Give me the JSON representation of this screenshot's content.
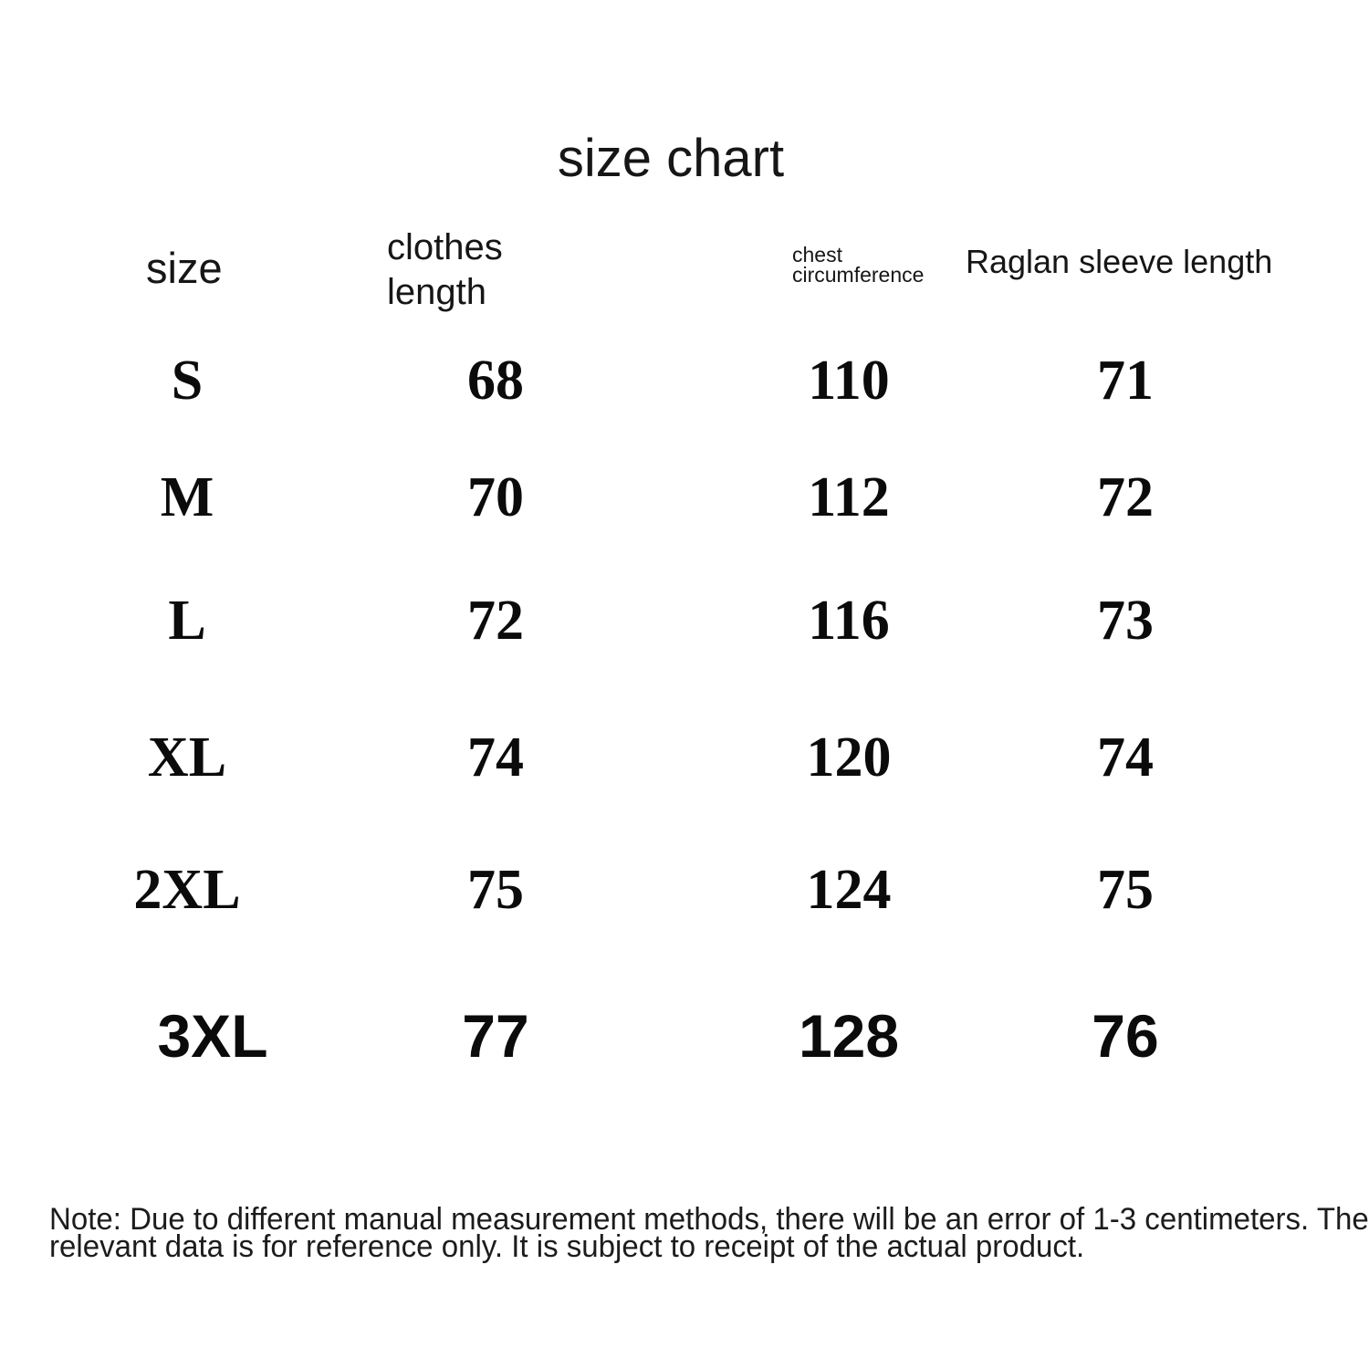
{
  "title": "size chart",
  "table": {
    "headers": {
      "size": "size",
      "clothes_line1": "clothes",
      "clothes_line2": "length",
      "chest_line1": "chest",
      "chest_line2": "circumference",
      "raglan": "Raglan sleeve length"
    },
    "rows": [
      {
        "size": "S",
        "clothes_length": "68",
        "chest_circumference": "110",
        "raglan_sleeve_length": "71"
      },
      {
        "size": "M",
        "clothes_length": "70",
        "chest_circumference": "112",
        "raglan_sleeve_length": "72"
      },
      {
        "size": "L",
        "clothes_length": "72",
        "chest_circumference": "116",
        "raglan_sleeve_length": "73"
      },
      {
        "size": "XL",
        "clothes_length": "74",
        "chest_circumference": "120",
        "raglan_sleeve_length": "74"
      },
      {
        "size": "2XL",
        "clothes_length": "75",
        "chest_circumference": "124",
        "raglan_sleeve_length": "75"
      },
      {
        "size": "3XL",
        "clothes_length": "77",
        "chest_circumference": "128",
        "raglan_sleeve_length": "76"
      }
    ]
  },
  "note": {
    "line1": "Note: Due to different manual measurement methods, there will be an error of 1-3 centimeters. The",
    "line2": "relevant data is for reference only. It is subject to receipt of the actual product."
  },
  "colors": {
    "background": "#ffffff",
    "text": "#131313",
    "values": "#0b0b0b"
  },
  "chart_data": {
    "type": "table",
    "title": "size chart",
    "columns": [
      "size",
      "clothes length",
      "chest circumference",
      "Raglan sleeve length"
    ],
    "rows": [
      [
        "S",
        68,
        110,
        71
      ],
      [
        "M",
        70,
        112,
        72
      ],
      [
        "L",
        72,
        116,
        73
      ],
      [
        "XL",
        74,
        120,
        74
      ],
      [
        "2XL",
        75,
        124,
        75
      ],
      [
        "3XL",
        77,
        128,
        76
      ]
    ],
    "note": "Note: Due to different manual measurement methods, there will be an error of 1-3 centimeters. The relevant data is for reference only. It is subject to receipt of the actual product.",
    "units": "centimeters"
  }
}
